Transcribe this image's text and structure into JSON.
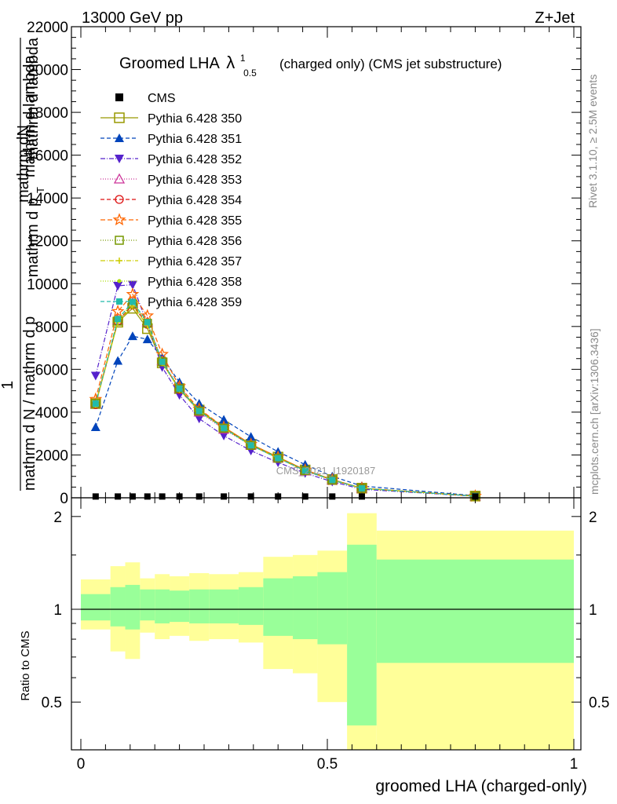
{
  "header": {
    "left": "13000 GeV pp",
    "right": "Z+Jet"
  },
  "side_labels": {
    "rivet": "Rivet 3.1.10, ≥ 2.5M events",
    "mcplots": "mcplots.cern.ch [arXiv:1306.3436]"
  },
  "main_plot": {
    "title_prefix": "Groomed LHA",
    "title_lambda": "λ",
    "title_sup": "1",
    "title_sub": "0.5",
    "title_suffix": "(charged only) (CMS jet substructure)",
    "ylabel_parts": [
      "mathrm dN",
      "1",
      "mathrm d N / mathrm d p",
      "T",
      "mathrm d lambda",
      "mathrm d p",
      "mathrm d lambda"
    ],
    "watermark": "CMS_2021_I1920187",
    "y_ticks": [
      "0",
      "2000",
      "4000",
      "6000",
      "8000",
      "10000",
      "12000",
      "14000",
      "16000",
      "18000",
      "20000",
      "22000"
    ]
  },
  "ratio_plot": {
    "ylabel": "Ratio to CMS",
    "xlabel": "groomed LHA (charged-only)",
    "y_ticks": [
      "0.5",
      "1",
      "2"
    ],
    "x_ticks": [
      "0",
      "0.5",
      "1"
    ]
  },
  "colors": {
    "band_outer": "#ffff99",
    "band_inner": "#99ff99"
  },
  "chart_data": {
    "type": "line",
    "title": "Groomed LHA λ^1_0.5 (charged only) (CMS jet substructure)",
    "xlabel": "groomed LHA (charged-only)",
    "ylabel": "1 / mathrm d N / mathrm d p_T mathrm d lambda",
    "xlim": [
      0,
      1
    ],
    "ylim": [
      0,
      22000
    ],
    "ratio_ylim": [
      0.35,
      2.3
    ],
    "ratio_ylabel": "Ratio to CMS",
    "legend_position": "top-left",
    "bin_edges": [
      0.0,
      0.06,
      0.09,
      0.12,
      0.15,
      0.18,
      0.22,
      0.26,
      0.32,
      0.37,
      0.43,
      0.48,
      0.54,
      0.6,
      1.0
    ],
    "x": [
      0.03,
      0.075,
      0.105,
      0.135,
      0.165,
      0.2,
      0.24,
      0.29,
      0.345,
      0.4,
      0.455,
      0.51,
      0.57,
      0.8
    ],
    "data": {
      "name": "CMS",
      "values": [
        60,
        60,
        60,
        60,
        60,
        60,
        60,
        60,
        60,
        60,
        60,
        60,
        60,
        60
      ]
    },
    "ratio_band_outer": [
      [
        0.86,
        1.25
      ],
      [
        0.73,
        1.38
      ],
      [
        0.69,
        1.42
      ],
      [
        0.84,
        1.26
      ],
      [
        0.8,
        1.3
      ],
      [
        0.82,
        1.28
      ],
      [
        0.79,
        1.31
      ],
      [
        0.8,
        1.3
      ],
      [
        0.78,
        1.32
      ],
      [
        0.64,
        1.48
      ],
      [
        0.62,
        1.5
      ],
      [
        0.5,
        1.55
      ],
      [
        0.25,
        2.05
      ],
      [
        0.25,
        1.8
      ]
    ],
    "ratio_band_inner": [
      [
        0.92,
        1.12
      ],
      [
        0.88,
        1.18
      ],
      [
        0.86,
        1.2
      ],
      [
        0.92,
        1.16
      ],
      [
        0.9,
        1.16
      ],
      [
        0.91,
        1.15
      ],
      [
        0.9,
        1.16
      ],
      [
        0.9,
        1.16
      ],
      [
        0.89,
        1.18
      ],
      [
        0.82,
        1.26
      ],
      [
        0.8,
        1.28
      ],
      [
        0.77,
        1.32
      ],
      [
        0.42,
        1.62
      ],
      [
        0.67,
        1.45
      ]
    ],
    "series": [
      {
        "name": "Pythia 6.428 350",
        "color": "#999900",
        "dash": "",
        "marker": "square-open",
        "values": [
          4400,
          8200,
          8850,
          7900,
          6300,
          5100,
          4100,
          3300,
          2500,
          1900,
          1300,
          850,
          450,
          80
        ]
      },
      {
        "name": "Pythia 6.428 351",
        "color": "#0044bb",
        "dash": "5,3",
        "marker": "triangle-up",
        "values": [
          3300,
          6400,
          7550,
          7400,
          6550,
          5400,
          4400,
          3650,
          2850,
          2150,
          1550,
          1000,
          550,
          100
        ]
      },
      {
        "name": "Pythia 6.428 352",
        "color": "#5522cc",
        "dash": "6,2,1,2",
        "marker": "triangle-down",
        "values": [
          5700,
          9900,
          9950,
          8100,
          6100,
          4800,
          3700,
          2900,
          2200,
          1650,
          1150,
          750,
          400,
          70
        ]
      },
      {
        "name": "Pythia 6.428 353",
        "color": "#cc3399",
        "dash": "1,2",
        "marker": "triangle-open",
        "values": [
          4400,
          8300,
          9100,
          8200,
          6400,
          5100,
          4000,
          3200,
          2450,
          1850,
          1250,
          820,
          440,
          78
        ]
      },
      {
        "name": "Pythia 6.428 354",
        "color": "#dd1111",
        "dash": "5,3",
        "marker": "circle-open",
        "values": [
          4350,
          8250,
          9000,
          8100,
          6350,
          5050,
          4050,
          3250,
          2450,
          1850,
          1270,
          830,
          440,
          78
        ]
      },
      {
        "name": "Pythia 6.428 355",
        "color": "#ff6600",
        "dash": "6,3",
        "marker": "star-open",
        "values": [
          4600,
          8700,
          9500,
          8500,
          6700,
          5200,
          4150,
          3300,
          2500,
          1900,
          1300,
          850,
          450,
          80
        ]
      },
      {
        "name": "Pythia 6.428 356",
        "color": "#779900",
        "dash": "1,2",
        "marker": "square-open-small",
        "values": [
          4400,
          8250,
          9050,
          8150,
          6350,
          5100,
          4050,
          3250,
          2450,
          1850,
          1270,
          830,
          440,
          78
        ]
      },
      {
        "name": "Pythia 6.428 357",
        "color": "#cccc00",
        "dash": "6,2,1,2",
        "marker": "cross",
        "values": [
          4350,
          8200,
          8950,
          8050,
          6300,
          5050,
          4050,
          3250,
          2450,
          1850,
          1270,
          830,
          440,
          78
        ]
      },
      {
        "name": "Pythia 6.428 358",
        "color": "#aadd00",
        "dash": "1,2",
        "marker": "dot",
        "values": [
          4400,
          8300,
          9100,
          8150,
          6350,
          5100,
          4050,
          3250,
          2450,
          1850,
          1270,
          830,
          440,
          78
        ]
      },
      {
        "name": "Pythia 6.428 359",
        "color": "#22bbaa",
        "dash": "5,3",
        "marker": "square-filled",
        "values": [
          4400,
          8350,
          9150,
          8200,
          6350,
          5100,
          4050,
          3250,
          2450,
          1850,
          1270,
          830,
          440,
          78
        ]
      }
    ]
  }
}
